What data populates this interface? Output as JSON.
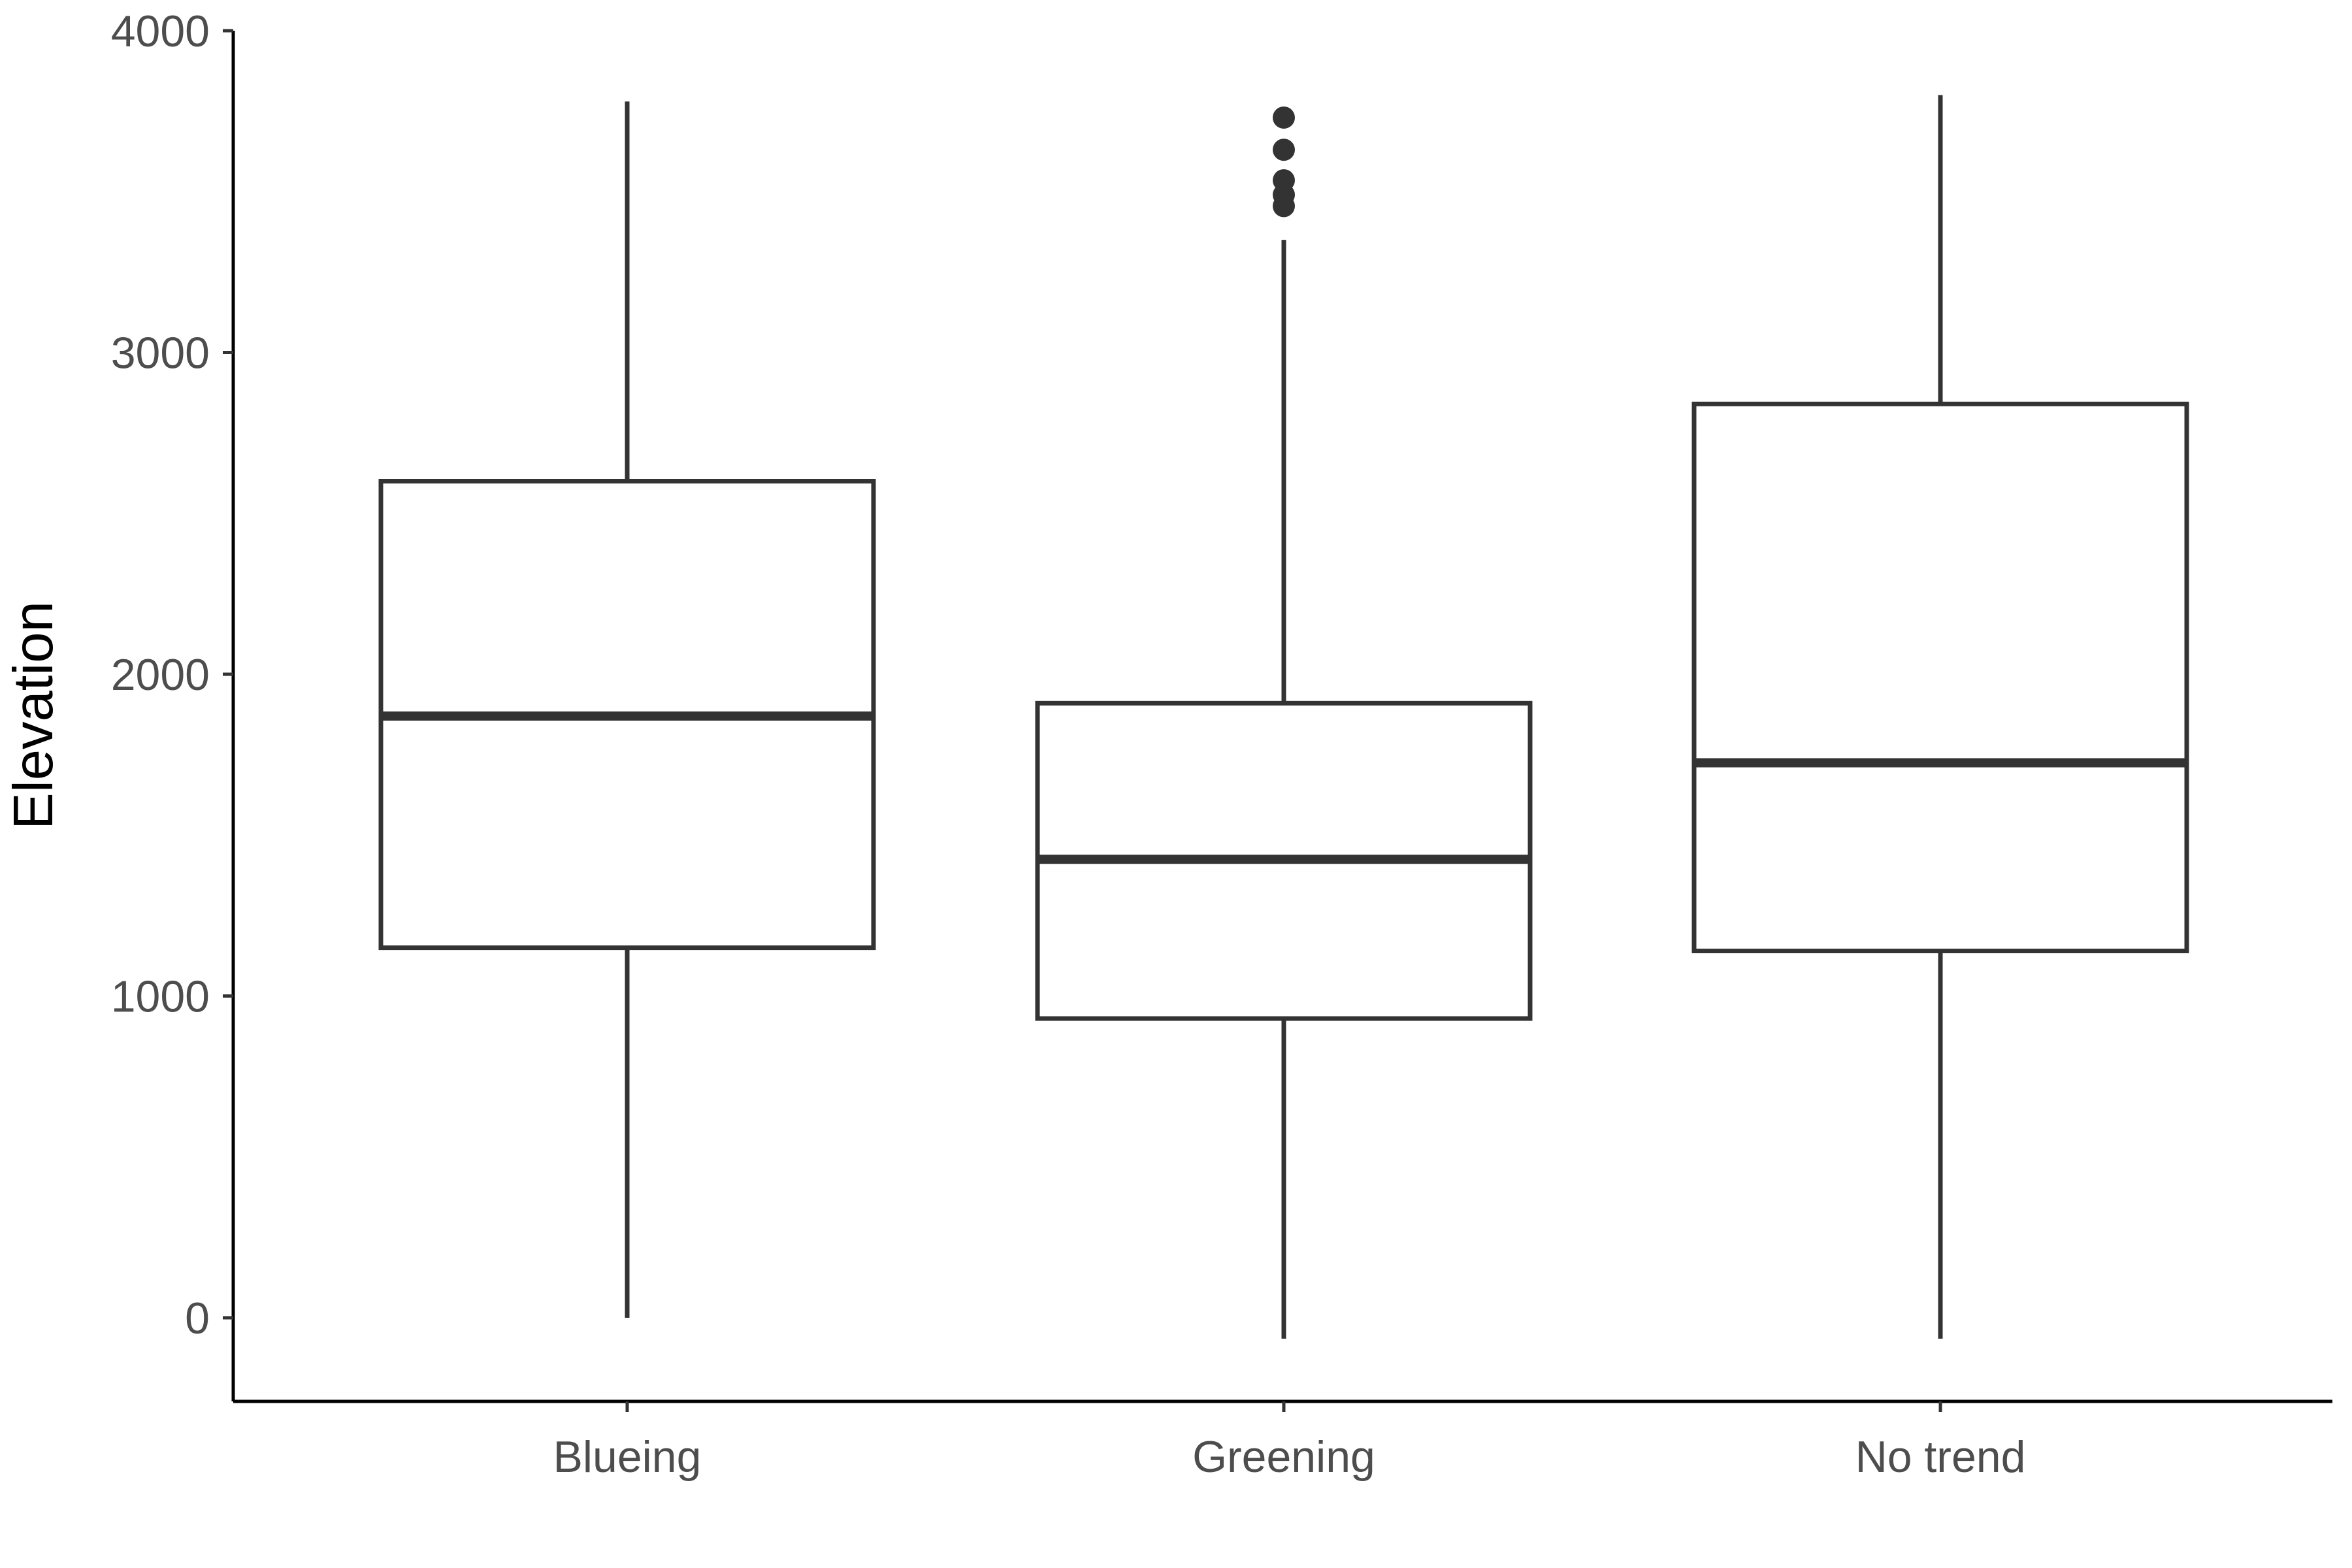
{
  "chart_data": {
    "type": "boxplot",
    "title": "",
    "xlabel": "",
    "ylabel": "Elevation",
    "ylim": [
      -250,
      4000
    ],
    "yticks": [
      0,
      1000,
      2000,
      3000,
      4000
    ],
    "categories": [
      "Blueing",
      "Greening",
      "No trend"
    ],
    "boxes": [
      {
        "category": "Blueing",
        "whisker_low": 0,
        "q1": 1150,
        "median": 1870,
        "q3": 2600,
        "whisker_high": 3780,
        "outliers": []
      },
      {
        "category": "Greening",
        "whisker_low": -65,
        "q1": 930,
        "median": 1425,
        "q3": 1910,
        "whisker_high": 3350,
        "outliers": [
          3455,
          3490,
          3535,
          3630,
          3730
        ]
      },
      {
        "category": "No trend",
        "whisker_low": -65,
        "q1": 1140,
        "median": 1725,
        "q3": 2840,
        "whisker_high": 3800,
        "outliers": []
      }
    ],
    "grid": false,
    "legend": "none",
    "colors": {
      "box_line": "#333333",
      "box_fill": "#ffffff",
      "axis": "#000000",
      "tick_text": "#4d4d4d"
    }
  }
}
